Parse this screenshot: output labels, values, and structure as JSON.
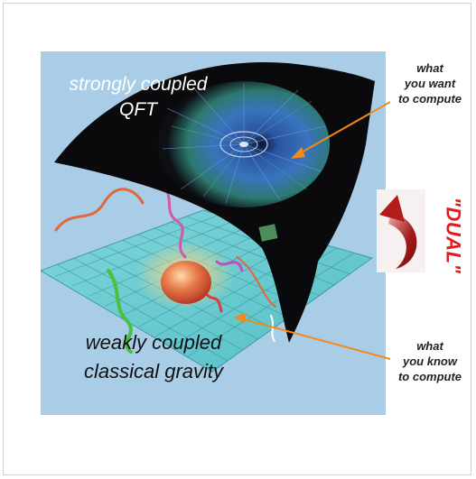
{
  "labels": {
    "qft_line1": "strongly coupled",
    "qft_line2": "QFT",
    "gravity_line1": "weakly coupled",
    "gravity_line2": "classical gravity"
  },
  "annotations": {
    "want_line1": "what",
    "want_line2": "you want",
    "want_line3": "to compute",
    "know_line1": "what",
    "know_line2": "you know",
    "know_line3": "to compute",
    "dual": "\"DUAL\""
  },
  "colors": {
    "background_panel": "#a9cde6",
    "arrow": "#f28a1c",
    "dual_text": "#e21b1b",
    "dual_arrow": "#9e1414"
  }
}
